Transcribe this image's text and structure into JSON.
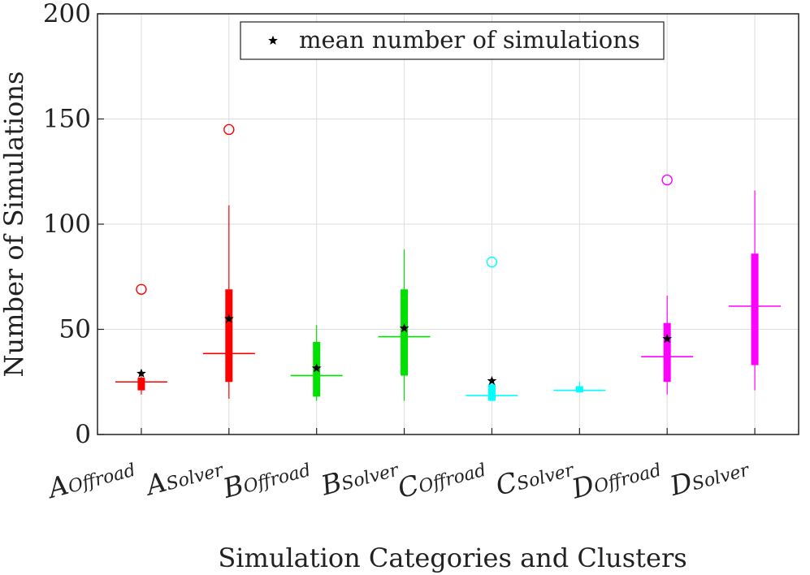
{
  "chart_data": {
    "type": "box",
    "title": "",
    "xlabel": "Simulation Categories and Clusters",
    "ylabel": "Number of Simulations",
    "ylim": [
      0,
      200
    ],
    "yticks": [
      "0",
      "50",
      "100",
      "150",
      "200"
    ],
    "grid": true,
    "legend": {
      "position": "top-center",
      "label": "mean number of simulations",
      "marker": "star"
    },
    "categories": [
      {
        "main": "A",
        "sub": "Offroad",
        "color": "#ff0000",
        "box": [
          21,
          27
        ],
        "median": 25,
        "whiskers": [
          19,
          29
        ],
        "outliers": [
          69
        ],
        "mean": 29
      },
      {
        "main": "A",
        "sub": "Solver",
        "color": "#ff0000",
        "box": [
          25,
          69
        ],
        "median": 38.5,
        "whiskers": [
          17,
          109
        ],
        "outliers": [
          145
        ],
        "mean": 55
      },
      {
        "main": "B",
        "sub": "Offroad",
        "color": "#00e000",
        "box": [
          18,
          44
        ],
        "median": 28,
        "whiskers": [
          16,
          52
        ],
        "outliers": [],
        "mean": 31.5
      },
      {
        "main": "B",
        "sub": "Solver",
        "color": "#00e000",
        "box": [
          28,
          69
        ],
        "median": 46.5,
        "whiskers": [
          16,
          88
        ],
        "outliers": [],
        "mean": 50.5
      },
      {
        "main": "C",
        "sub": "Offroad",
        "color": "#00ffff",
        "box": [
          16,
          24
        ],
        "median": 18.5,
        "whiskers": [
          16,
          24
        ],
        "outliers": [
          82
        ],
        "mean": 25.5
      },
      {
        "main": "C",
        "sub": "Solver",
        "color": "#00ffff",
        "box": [
          20,
          23
        ],
        "median": 21,
        "whiskers": [
          20,
          25
        ],
        "outliers": [],
        "mean": null
      },
      {
        "main": "D",
        "sub": "Offroad",
        "color": "#ff00ff",
        "box": [
          25,
          53
        ],
        "median": 37,
        "whiskers": [
          19,
          66
        ],
        "outliers": [
          121
        ],
        "mean": 45.5
      },
      {
        "main": "D",
        "sub": "Solver",
        "color": "#ff00ff",
        "box": [
          33,
          86
        ],
        "median": 61,
        "whiskers": [
          21,
          116
        ],
        "outliers": [],
        "mean": null
      }
    ]
  }
}
